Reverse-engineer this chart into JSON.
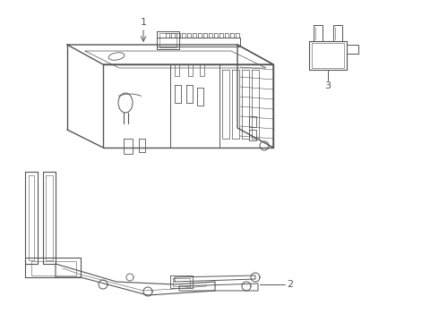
{
  "background_color": "#ffffff",
  "line_color": "#555555",
  "line_width": 0.7,
  "label_1": "1",
  "label_2": "2",
  "label_3": "3",
  "label_fontsize": 8,
  "fig_width": 4.9,
  "fig_height": 3.6,
  "dpi": 100
}
